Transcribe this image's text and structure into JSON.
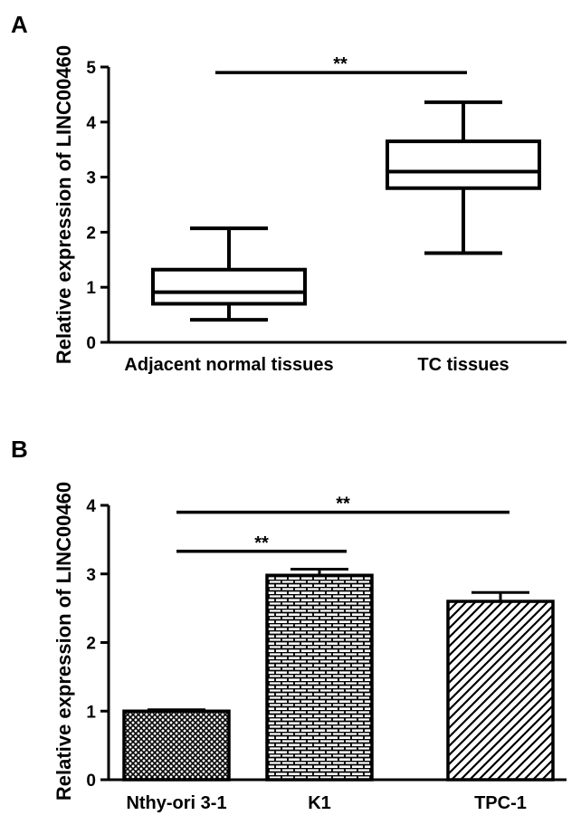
{
  "panels": [
    {
      "letter": "A"
    },
    {
      "letter": "B"
    }
  ],
  "chart_data": [
    {
      "type": "box",
      "panel": "A",
      "ylabel": "Relative expression of LINC00460",
      "ylim": [
        0,
        5
      ],
      "yticks": [
        "0",
        "1",
        "2",
        "3",
        "4",
        "5"
      ],
      "categories": [
        "Adjacent normal tissues",
        "TC tissues"
      ],
      "boxes": [
        {
          "min": 0.41,
          "q1": 0.7,
          "median": 0.91,
          "q3": 1.32,
          "max": 2.07
        },
        {
          "min": 1.62,
          "q1": 2.8,
          "median": 3.1,
          "q3": 3.65,
          "max": 4.36
        }
      ],
      "significance": [
        {
          "from": 0,
          "to": 1,
          "label": "**",
          "y": 4.9
        }
      ]
    },
    {
      "type": "bar",
      "panel": "B",
      "ylabel": "Relative expression of LINC00460",
      "ylim": [
        0,
        4
      ],
      "yticks": [
        "0",
        "1",
        "2",
        "3",
        "4"
      ],
      "categories": [
        "Nthy-ori 3-1",
        "K1",
        "TPC-1"
      ],
      "values": [
        1.0,
        2.98,
        2.6
      ],
      "errors": [
        0.02,
        0.09,
        0.13
      ],
      "patterns": [
        "crosshatch",
        "brick",
        "diagonal"
      ],
      "significance": [
        {
          "from": 0,
          "to": 1,
          "label": "**",
          "y": 3.33
        },
        {
          "from": 0,
          "to": 2,
          "label": "**",
          "y": 3.9
        }
      ]
    }
  ]
}
